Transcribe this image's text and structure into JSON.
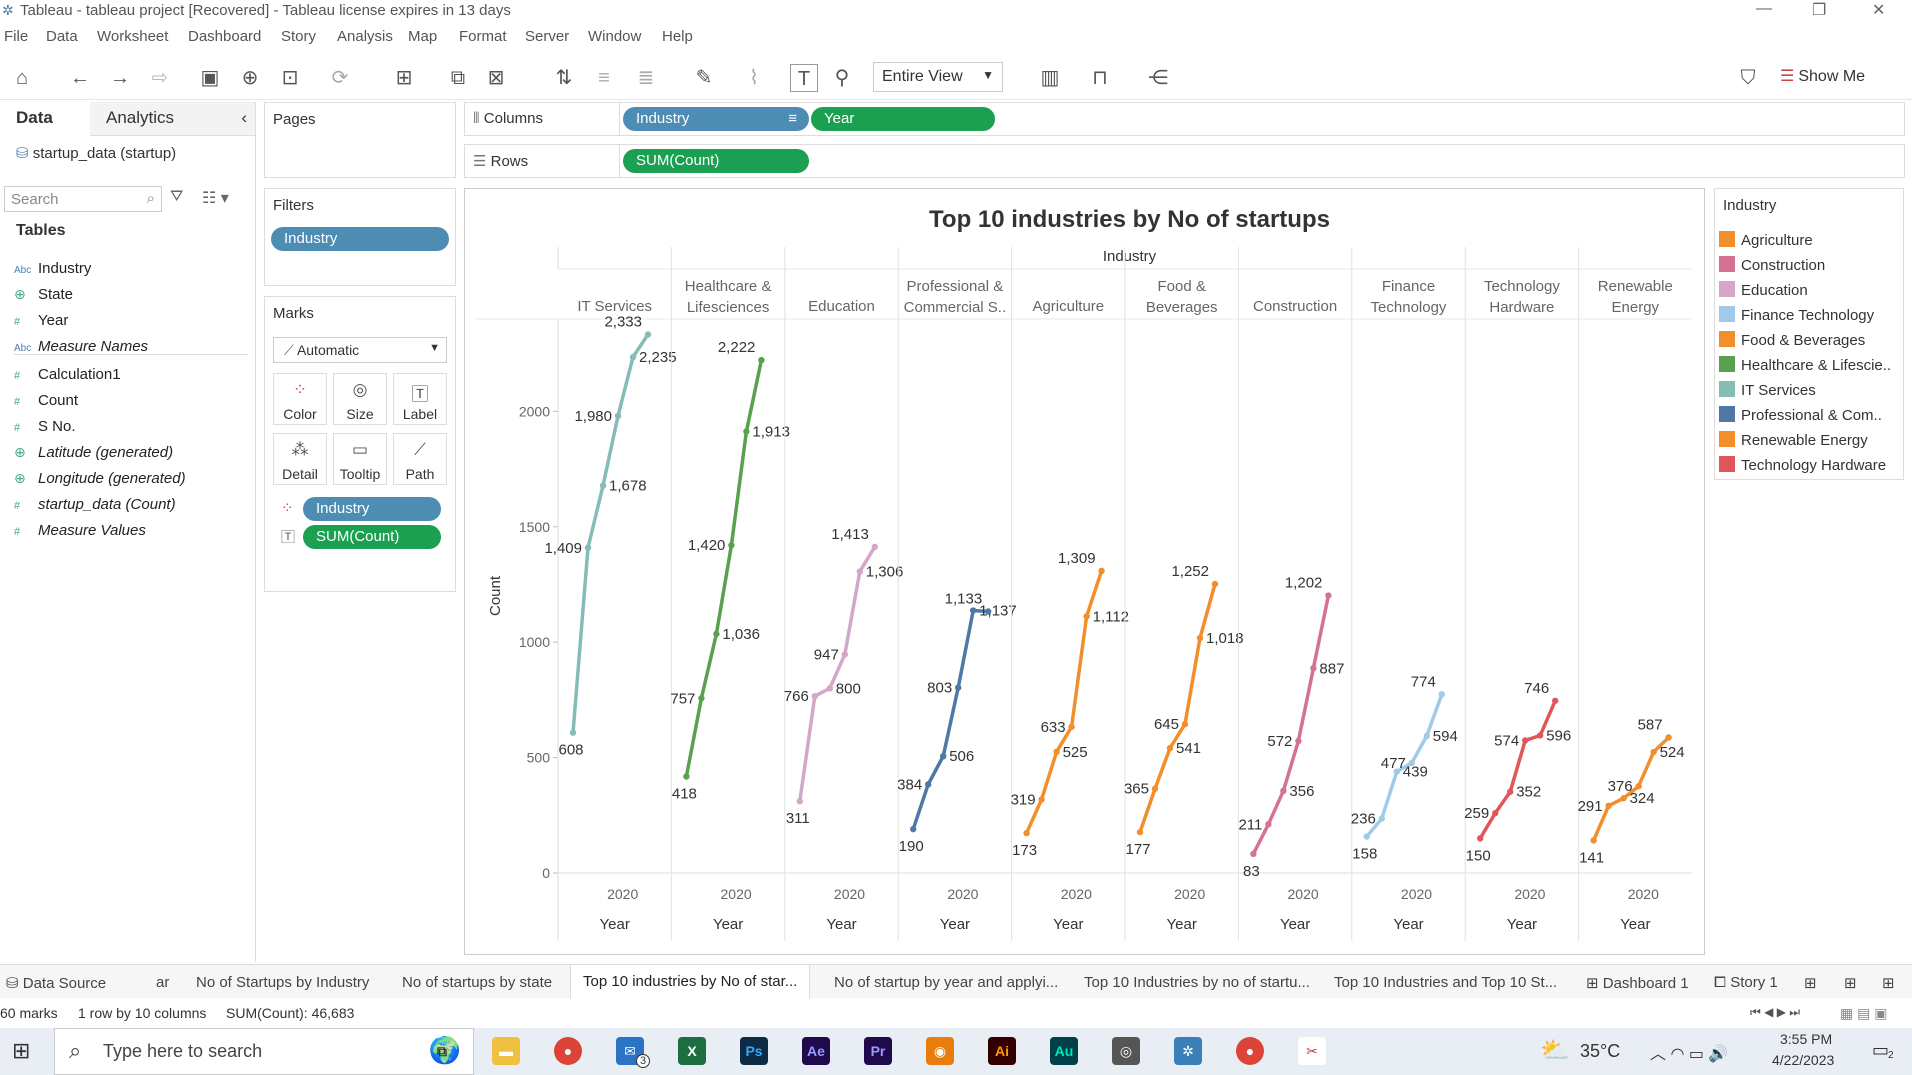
{
  "window": {
    "title": "Tableau - tableau project [Recovered] - Tableau license expires in 13 days"
  },
  "menu": [
    "File",
    "Data",
    "Worksheet",
    "Dashboard",
    "Story",
    "Analysis",
    "Map",
    "Format",
    "Server",
    "Window",
    "Help"
  ],
  "toolbar": {
    "view_mode": "Entire View",
    "show_me": "Show Me"
  },
  "data_pane": {
    "tabs": [
      "Data",
      "Analytics"
    ],
    "datasource": "startup_data (startup)",
    "search_placeholder": "Search",
    "tables_header": "Tables",
    "fields": [
      {
        "name": "Industry",
        "type": "abc"
      },
      {
        "name": "State",
        "type": "geo"
      },
      {
        "name": "Year",
        "type": "num"
      },
      {
        "name": "Measure Names",
        "type": "abc",
        "italic": true
      },
      {
        "name": "Calculation1",
        "type": "num"
      },
      {
        "name": "Count",
        "type": "num"
      },
      {
        "name": "S No.",
        "type": "num"
      },
      {
        "name": "Latitude (generated)",
        "type": "geo",
        "italic": true
      },
      {
        "name": "Longitude (generated)",
        "type": "geo",
        "italic": true
      },
      {
        "name": "startup_data (Count)",
        "type": "num",
        "italic": true
      },
      {
        "name": "Measure Values",
        "type": "num",
        "italic": true
      }
    ]
  },
  "shelves": {
    "pages": "Pages",
    "filters": "Filters",
    "filter_pill": "Industry",
    "marks": "Marks",
    "mark_type": "Automatic",
    "mark_buttons": [
      "Color",
      "Size",
      "Label",
      "Detail",
      "Tooltip",
      "Path"
    ],
    "mark_pills": [
      "Industry",
      "SUM(Count)"
    ],
    "columns_label": "Columns",
    "columns": [
      "Industry",
      "Year"
    ],
    "rows_label": "Rows",
    "rows": [
      "SUM(Count)"
    ]
  },
  "chart_data": {
    "type": "line",
    "title": "Top 10 industries by No of startups",
    "header": "Industry",
    "xlabel": "Year",
    "ylabel": "Count",
    "x_tick": "2020",
    "ylim": [
      0,
      2400
    ],
    "yticks": [
      "0",
      "500",
      "1000",
      "1500",
      "2000"
    ],
    "series": [
      {
        "name": "IT Services",
        "header": [
          "IT Services"
        ],
        "color": "#86bcb6",
        "values": [
          608,
          1409,
          1678,
          1980,
          2235,
          2333
        ],
        "labels": [
          "608",
          "1,409",
          "1,678",
          "1,980",
          "2,235",
          "2,333"
        ]
      },
      {
        "name": "Healthcare & Lifesciences",
        "header": [
          "Healthcare &",
          "Lifesciences"
        ],
        "color": "#59a14f",
        "values": [
          418,
          757,
          1036,
          1420,
          1913,
          2222
        ],
        "labels": [
          "418",
          "757",
          "1,036",
          "1,420",
          "1,913",
          "2,222"
        ]
      },
      {
        "name": "Education",
        "header": [
          "Education"
        ],
        "color": "#d4a6c8",
        "values": [
          311,
          766,
          800,
          947,
          1306,
          1413
        ],
        "labels": [
          "311",
          "766",
          "800",
          "947",
          "1,306",
          "1,413"
        ]
      },
      {
        "name": "Professional & Commercial S..",
        "header": [
          "Professional &",
          "Commercial S.."
        ],
        "color": "#4e79a7",
        "values": [
          190,
          384,
          506,
          803,
          1137,
          1133
        ],
        "labels": [
          "190",
          "384",
          "506",
          "803",
          "1,137",
          "1,133"
        ]
      },
      {
        "name": "Agriculture",
        "header": [
          "Agriculture"
        ],
        "color": "#f28e2b",
        "values": [
          173,
          319,
          525,
          633,
          1112,
          1309
        ],
        "labels": [
          "173",
          "319",
          "525",
          "633",
          "1,112",
          "1,309"
        ]
      },
      {
        "name": "Food & Beverages",
        "header": [
          "Food &",
          "Beverages"
        ],
        "color": "#f28e2b",
        "values": [
          177,
          365,
          541,
          645,
          1018,
          1252
        ],
        "labels": [
          "177",
          "365",
          "541",
          "645",
          "1,018",
          "1,252"
        ]
      },
      {
        "name": "Construction",
        "header": [
          "Construction"
        ],
        "color": "#d37295",
        "values": [
          83,
          211,
          356,
          572,
          887,
          1202
        ],
        "labels": [
          "83",
          "211",
          "356",
          "572",
          "887",
          "1,202"
        ]
      },
      {
        "name": "Finance Technology",
        "header": [
          "Finance",
          "Technology"
        ],
        "color": "#a0cbe8",
        "values": [
          158,
          236,
          439,
          477,
          594,
          774
        ],
        "labels": [
          "158",
          "236",
          "439",
          "477",
          "594",
          "774"
        ]
      },
      {
        "name": "Technology Hardware",
        "header": [
          "Technology",
          "Hardware"
        ],
        "color": "#e15759",
        "values": [
          150,
          259,
          352,
          574,
          596,
          746
        ],
        "labels": [
          "150",
          "259",
          "352",
          "574",
          "596",
          "746"
        ]
      },
      {
        "name": "Renewable Energy",
        "header": [
          "Renewable",
          "Energy"
        ],
        "color": "#f28e2b",
        "values": [
          141,
          291,
          324,
          376,
          524,
          587
        ],
        "labels": [
          "141",
          "291",
          "324",
          "376",
          "524",
          "587"
        ]
      }
    ]
  },
  "legend": {
    "title": "Industry",
    "items": [
      {
        "label": "Agriculture",
        "color": "#f28e2b"
      },
      {
        "label": "Construction",
        "color": "#d37295"
      },
      {
        "label": "Education",
        "color": "#d4a6c8"
      },
      {
        "label": "Finance Technology",
        "color": "#a0cbe8"
      },
      {
        "label": "Food & Beverages",
        "color": "#f28e2b"
      },
      {
        "label": "Healthcare & Lifescie..",
        "color": "#59a14f"
      },
      {
        "label": "IT Services",
        "color": "#86bcb6"
      },
      {
        "label": "Professional & Com..",
        "color": "#4e79a7"
      },
      {
        "label": "Renewable Energy",
        "color": "#f28e2b"
      },
      {
        "label": "Technology Hardware",
        "color": "#e15759"
      }
    ]
  },
  "sheet_tabs": [
    "Data Source",
    "ar",
    "No of Startups by Industry",
    "No of startups by state",
    "Top 10 industries by No of star...",
    "No of startup by year and applyi...",
    "Top 10 Industries by no of startu...",
    "Top 10 Industries and Top 10 St...",
    "Dashboard 1",
    "Story 1"
  ],
  "status": {
    "marks": "60 marks",
    "dims": "1 row by 10 columns",
    "sum": "SUM(Count): 46,683"
  },
  "taskbar": {
    "search_placeholder": "Type here to search",
    "temp": "35°C",
    "time": "3:55 PM",
    "date": "4/22/2023",
    "notif": "2",
    "mail_badge": "3"
  }
}
